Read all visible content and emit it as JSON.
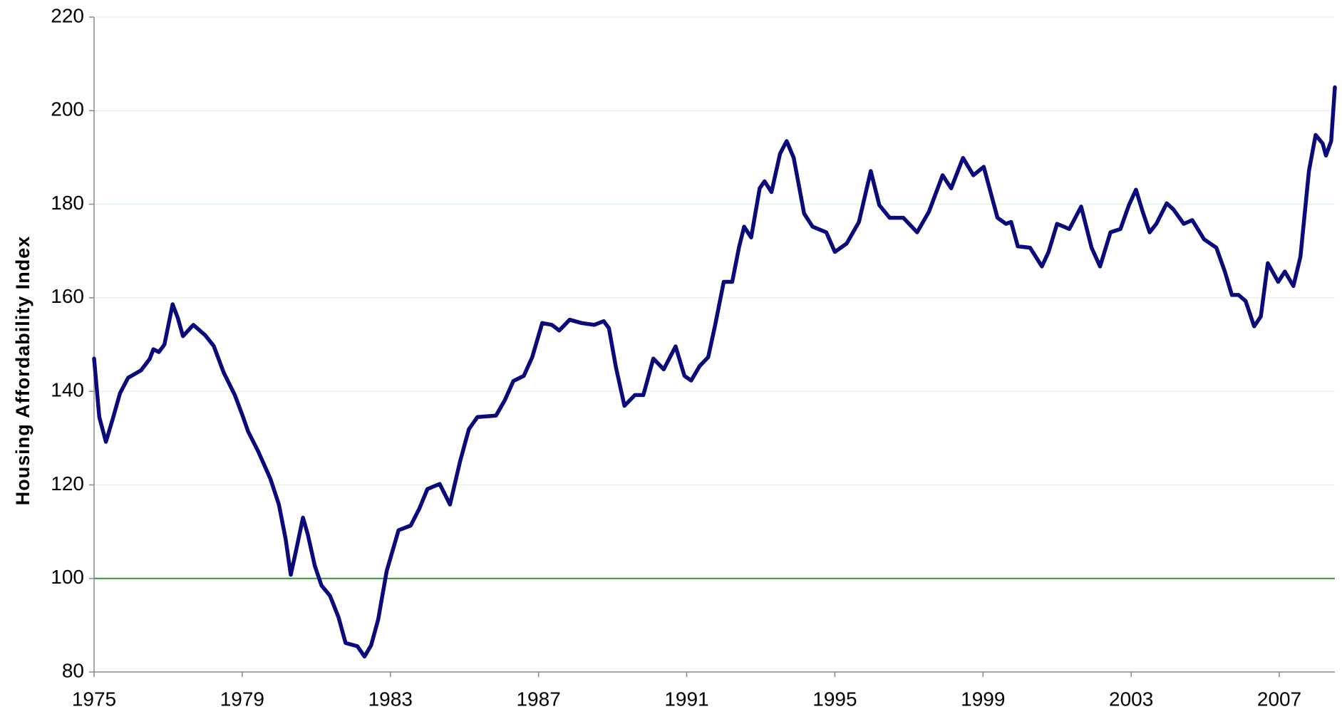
{
  "chart_data": {
    "type": "line",
    "y_label": "Housing Affordability Index",
    "x": [
      1975.0,
      1975.14,
      1975.32,
      1975.5,
      1975.7,
      1975.92,
      1976.27,
      1976.5,
      1976.6,
      1976.75,
      1976.9,
      1977.12,
      1977.26,
      1977.4,
      1977.68,
      1978.0,
      1978.23,
      1978.5,
      1978.8,
      1979.0,
      1979.16,
      1979.43,
      1979.76,
      1979.99,
      1980.17,
      1980.31,
      1980.45,
      1980.64,
      1980.77,
      1980.96,
      1981.14,
      1981.37,
      1981.6,
      1981.79,
      1982.11,
      1982.3,
      1982.48,
      1982.67,
      1982.9,
      1983.22,
      1983.55,
      1983.78,
      1984.0,
      1984.33,
      1984.61,
      1984.88,
      1985.12,
      1985.35,
      1985.85,
      1986.09,
      1986.32,
      1986.6,
      1986.83,
      1987.1,
      1987.36,
      1987.56,
      1987.84,
      1988.16,
      1988.5,
      1988.76,
      1988.9,
      1989.09,
      1989.32,
      1989.6,
      1989.83,
      1990.1,
      1990.38,
      1990.7,
      1990.94,
      1991.12,
      1991.35,
      1991.58,
      1991.77,
      1992.0,
      1992.23,
      1992.41,
      1992.55,
      1992.74,
      1992.97,
      1993.1,
      1993.29,
      1993.52,
      1993.7,
      1993.89,
      1994.17,
      1994.4,
      1994.77,
      1995.0,
      1995.32,
      1995.65,
      1995.97,
      1996.2,
      1996.48,
      1996.85,
      1997.22,
      1997.54,
      1997.91,
      1998.14,
      1998.46,
      1998.74,
      1999.02,
      1999.39,
      1999.62,
      1999.76,
      1999.94,
      2000.27,
      2000.59,
      2000.77,
      2001.0,
      2001.33,
      2001.65,
      2001.93,
      2002.16,
      2002.44,
      2002.71,
      2002.94,
      2003.13,
      2003.31,
      2003.5,
      2003.68,
      2003.96,
      2004.14,
      2004.42,
      2004.65,
      2004.97,
      2005.3,
      2005.53,
      2005.72,
      2005.9,
      2006.09,
      2006.32,
      2006.5,
      2006.69,
      2006.97,
      2007.15,
      2007.38,
      2007.57,
      2007.8,
      2007.98,
      2008.17,
      2008.26,
      2008.4,
      2008.5
    ],
    "values": [
      147,
      134.5,
      129.2,
      134,
      139.6,
      142.9,
      144.5,
      146.9,
      149,
      148.4,
      150,
      158.6,
      155.7,
      151.8,
      154.2,
      152,
      149.7,
      144,
      139.2,
      135,
      131.4,
      127.2,
      121.3,
      115.8,
      108.5,
      100.8,
      105.8,
      113,
      109.4,
      102.7,
      98.5,
      96.3,
      91.7,
      86.2,
      85.5,
      83.3,
      85.7,
      91.2,
      101.6,
      110.3,
      111.3,
      114.9,
      119.1,
      120.2,
      115.8,
      125,
      131.9,
      134.5,
      134.8,
      138.1,
      142.2,
      143.3,
      147.3,
      154.6,
      154.2,
      153,
      155.3,
      154.6,
      154.2,
      155,
      153.5,
      145.1,
      136.9,
      139.2,
      139.2,
      147,
      144.7,
      149.6,
      143.3,
      142.3,
      145.4,
      147.3,
      154.2,
      163.4,
      163.4,
      170.7,
      175.2,
      172.9,
      183.4,
      184.9,
      182.6,
      190.8,
      193.5,
      189.9,
      178,
      175.2,
      174,
      169.8,
      171.6,
      176.2,
      187.1,
      179.8,
      177.1,
      177.1,
      174,
      178.4,
      186.2,
      183.4,
      189.9,
      186.2,
      188,
      177.1,
      175.8,
      176.2,
      171,
      170.7,
      166.7,
      169.8,
      175.8,
      174.7,
      179.5,
      170.7,
      166.7,
      174,
      174.7,
      179.8,
      183.1,
      178.4,
      174,
      175.8,
      180.2,
      178.9,
      175.8,
      176.6,
      172.5,
      170.7,
      165.6,
      160.6,
      160.6,
      159.3,
      153.9,
      156,
      167.4,
      163.4,
      165.6,
      162.5,
      168.8,
      187.1,
      194.8,
      193,
      190.4,
      193.5,
      205
    ],
    "color": "#0a0a7a",
    "xlim": [
      1975,
      2008.5
    ],
    "xticks": [
      1975,
      1979,
      1983,
      1987,
      1991,
      1995,
      1999,
      2003,
      2007
    ],
    "ylim": [
      80,
      220
    ],
    "yticks": [
      80,
      100,
      120,
      140,
      160,
      180,
      200,
      220
    ],
    "grid": true,
    "grid_color": "#d8f0d8",
    "reference_line": {
      "value": 100,
      "color": "#2e9a2e"
    }
  }
}
